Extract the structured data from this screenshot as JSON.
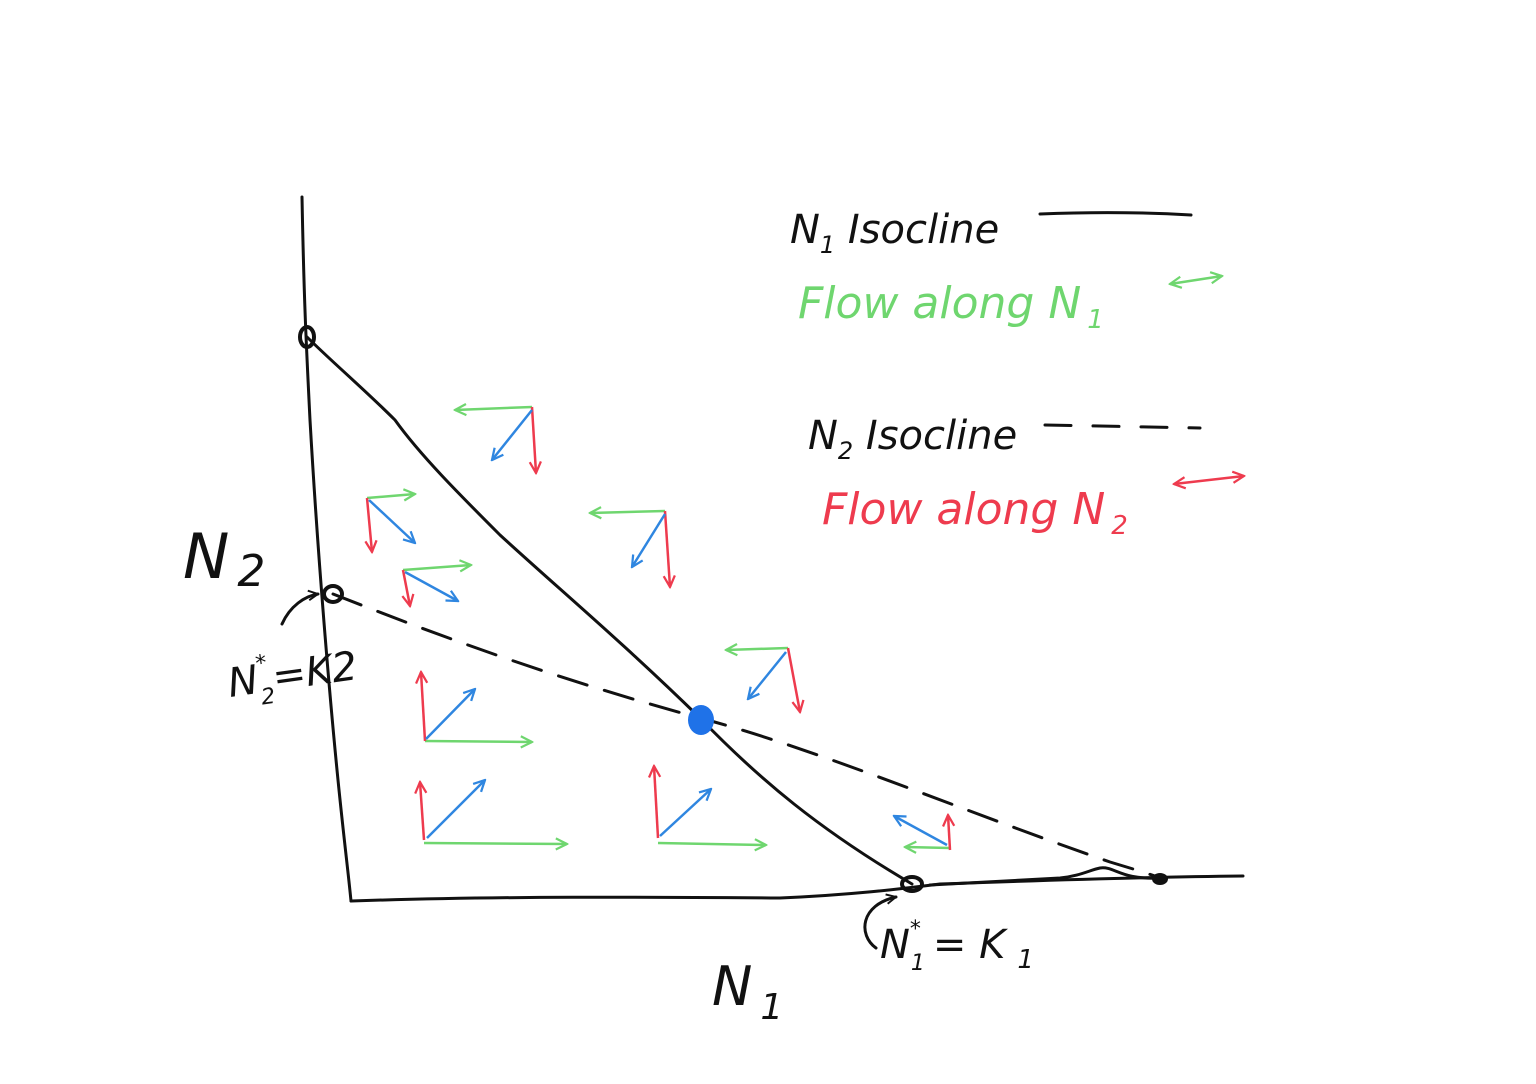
{
  "axes": {
    "y_label_main": "N",
    "y_label_sub": "2",
    "x_label_main": "N",
    "x_label_sub": "1"
  },
  "annotations": {
    "k2": {
      "n": "N",
      "sup": "*",
      "sub": "2",
      "rest": "=K2"
    },
    "k1": {
      "n": "N",
      "sup": "*",
      "sub": "1",
      "rest": "= K",
      "rest_sub": "1"
    }
  },
  "legend": {
    "n1_isocline": {
      "main": "N",
      "sub": "1",
      "rest": " Isocline"
    },
    "flow_n1": {
      "main": "Flow along N",
      "sub": "1"
    },
    "n2_isocline": {
      "main": "N",
      "sub": "2",
      "rest": " Isocline"
    },
    "flow_n2": {
      "main": "Flow along N",
      "sub": "2"
    }
  },
  "colors": {
    "ink": "#111111",
    "flow_n1": "#6fd66f",
    "flow_n2": "#ee3b4e",
    "resultant": "#2f86e0",
    "equilibrium": "#1f72e8"
  }
}
